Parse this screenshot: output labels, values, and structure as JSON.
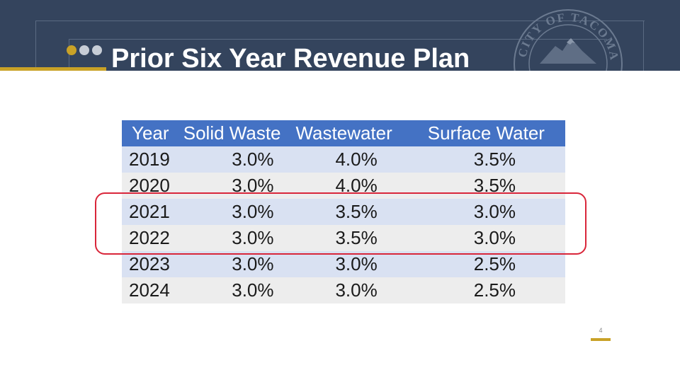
{
  "slide": {
    "title": "Prior Six Year Revenue Plan",
    "page_number": "4",
    "seal_text": "CITY OF TACOMA",
    "colors": {
      "header": "#34445d",
      "accent_gold": "#c9a227",
      "table_header": "#4472c4",
      "highlight": "#d9263a"
    }
  },
  "table": {
    "headers": [
      "Year",
      "Solid Waste",
      "Wastewater",
      "Surface Water"
    ],
    "rows": [
      [
        "2019",
        "3.0%",
        "4.0%",
        "3.5%"
      ],
      [
        "2020",
        "3.0%",
        "4.0%",
        "3.5%"
      ],
      [
        "2021",
        "3.0%",
        "3.5%",
        "3.0%"
      ],
      [
        "2022",
        "3.0%",
        "3.5%",
        "3.0%"
      ],
      [
        "2023",
        "3.0%",
        "3.0%",
        "2.5%"
      ],
      [
        "2024",
        "3.0%",
        "3.0%",
        "2.5%"
      ]
    ],
    "highlighted_rows": [
      "2021",
      "2022"
    ]
  }
}
